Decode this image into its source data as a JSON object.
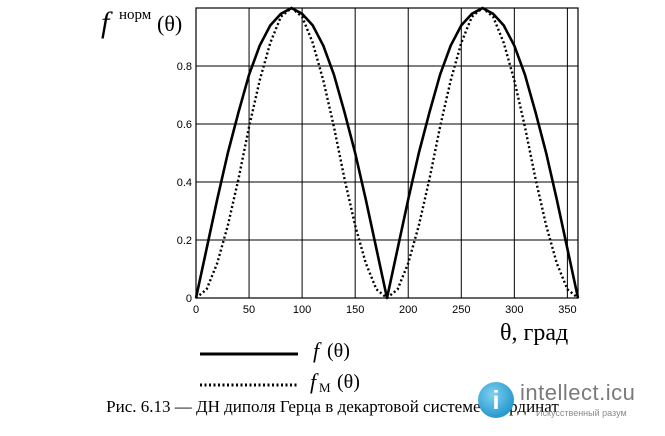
{
  "chart_data": {
    "type": "line",
    "title": "",
    "ylabel": {
      "f": "f",
      "superscript": "норм",
      "arg": "(θ)"
    },
    "xlabel": "θ, град",
    "xlim": [
      0,
      360
    ],
    "ylim": [
      0,
      1
    ],
    "x_ticks": [
      "0",
      "50",
      "100",
      "150",
      "200",
      "250",
      "300",
      "350"
    ],
    "y_ticks": [
      "0",
      "0.2",
      "0.4",
      "0.6",
      "0.8"
    ],
    "grid": true,
    "series": [
      {
        "name": "f (θ)",
        "style": "solid",
        "x": [
          0,
          10,
          20,
          30,
          40,
          50,
          60,
          70,
          80,
          90,
          100,
          110,
          120,
          130,
          140,
          150,
          160,
          170,
          180,
          190,
          200,
          210,
          220,
          230,
          240,
          250,
          260,
          270,
          280,
          290,
          300,
          310,
          320,
          330,
          340,
          350,
          360
        ],
        "values": [
          0,
          0.17,
          0.34,
          0.5,
          0.64,
          0.77,
          0.87,
          0.94,
          0.98,
          1,
          0.98,
          0.94,
          0.87,
          0.77,
          0.64,
          0.5,
          0.34,
          0.17,
          0,
          0.17,
          0.34,
          0.5,
          0.64,
          0.77,
          0.87,
          0.94,
          0.98,
          1,
          0.98,
          0.94,
          0.87,
          0.77,
          0.64,
          0.5,
          0.34,
          0.17,
          0
        ]
      },
      {
        "name": "fM (θ)",
        "style": "dotted",
        "x": [
          0,
          10,
          20,
          30,
          40,
          50,
          60,
          70,
          80,
          90,
          100,
          110,
          120,
          130,
          140,
          150,
          160,
          170,
          180,
          190,
          200,
          210,
          220,
          230,
          240,
          250,
          260,
          270,
          280,
          290,
          300,
          310,
          320,
          330,
          340,
          350,
          360
        ],
        "values": [
          0,
          0.03,
          0.12,
          0.25,
          0.41,
          0.59,
          0.75,
          0.88,
          0.97,
          1,
          0.97,
          0.88,
          0.75,
          0.59,
          0.41,
          0.25,
          0.12,
          0.03,
          0,
          0.03,
          0.12,
          0.25,
          0.41,
          0.59,
          0.75,
          0.88,
          0.97,
          1,
          0.97,
          0.88,
          0.75,
          0.59,
          0.41,
          0.25,
          0.12,
          0.03,
          0
        ]
      }
    ],
    "legend": {
      "placement": "bottom-center",
      "items": [
        {
          "f": "f",
          "sub": "",
          "arg": "(θ)"
        },
        {
          "f": "f",
          "sub": "М",
          "arg": "(θ)"
        }
      ]
    }
  },
  "caption": "Рис. 6.13 — ДН диполя Герца в декартовой системе координат",
  "watermark": {
    "logo_letter": "i",
    "name": "intellect.icu",
    "tagline": "Искусственный разум"
  }
}
